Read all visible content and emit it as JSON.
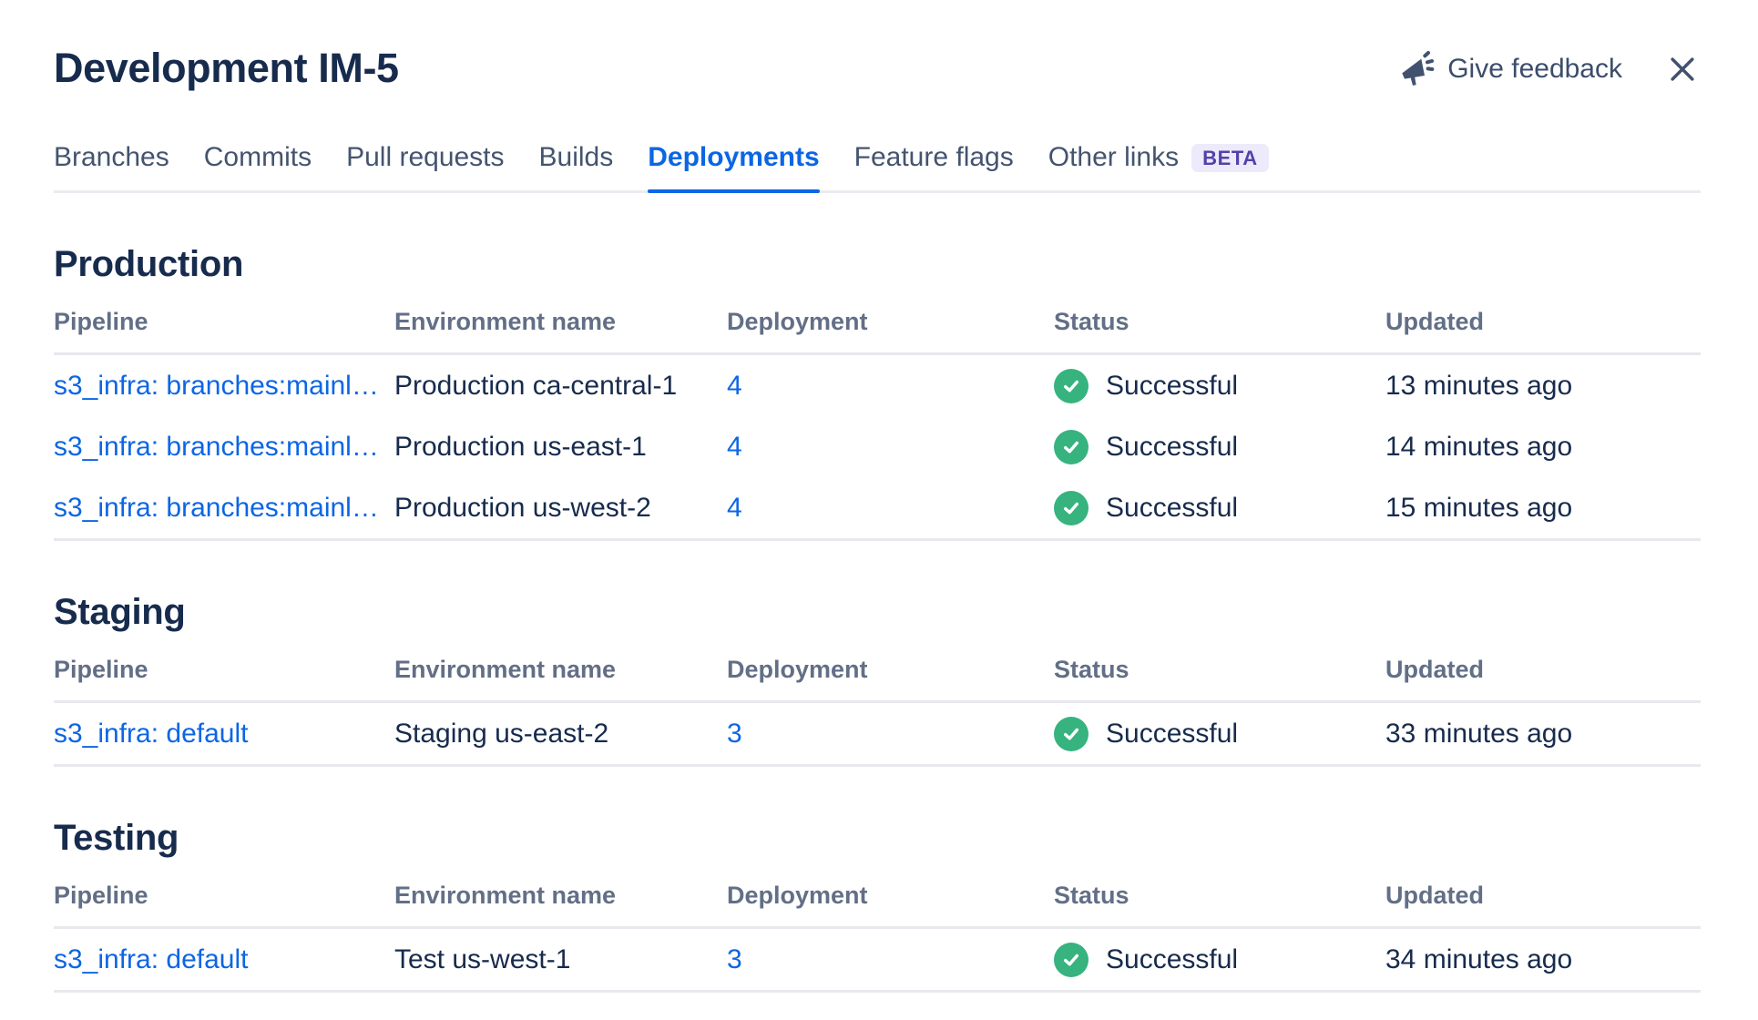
{
  "header": {
    "title": "Development IM-5",
    "feedback_label": "Give feedback",
    "close_label": "Close"
  },
  "tabs": [
    {
      "label": "Branches",
      "active": false
    },
    {
      "label": "Commits",
      "active": false
    },
    {
      "label": "Pull requests",
      "active": false
    },
    {
      "label": "Builds",
      "active": false
    },
    {
      "label": "Deployments",
      "active": true
    },
    {
      "label": "Feature flags",
      "active": false
    },
    {
      "label": "Other links",
      "active": false,
      "badge": "BETA"
    }
  ],
  "table": {
    "columns": [
      "Pipeline",
      "Environment name",
      "Deployment",
      "Status",
      "Updated"
    ]
  },
  "sections": [
    {
      "title": "Production",
      "rows": [
        {
          "pipeline": "s3_infra: branches:mainl…",
          "environment": "Production ca-central-1",
          "deployment": "4",
          "status": "Successful",
          "updated": "13 minutes ago"
        },
        {
          "pipeline": "s3_infra: branches:mainl…",
          "environment": "Production us-east-1",
          "deployment": "4",
          "status": "Successful",
          "updated": "14 minutes ago"
        },
        {
          "pipeline": "s3_infra: branches:mainl…",
          "environment": "Production us-west-2",
          "deployment": "4",
          "status": "Successful",
          "updated": "15 minutes ago"
        }
      ]
    },
    {
      "title": "Staging",
      "rows": [
        {
          "pipeline": "s3_infra: default",
          "environment": "Staging us-east-2",
          "deployment": "3",
          "status": "Successful",
          "updated": "33 minutes ago"
        }
      ]
    },
    {
      "title": "Testing",
      "rows": [
        {
          "pipeline": "s3_infra: default",
          "environment": "Test us-west-1",
          "deployment": "3",
          "status": "Successful",
          "updated": "34 minutes ago"
        }
      ]
    }
  ],
  "icons": {
    "feedback": "megaphone-icon",
    "close": "close-icon",
    "status_success": "check-circle-icon"
  },
  "colors": {
    "accent_blue": "#0C66E4",
    "link_blue": "#0C66E4",
    "success_green": "#36B37E",
    "text_primary": "#172B4D",
    "text_subtle": "#626F86",
    "beta_bg": "#EDEAFB",
    "beta_text": "#5243AA"
  }
}
